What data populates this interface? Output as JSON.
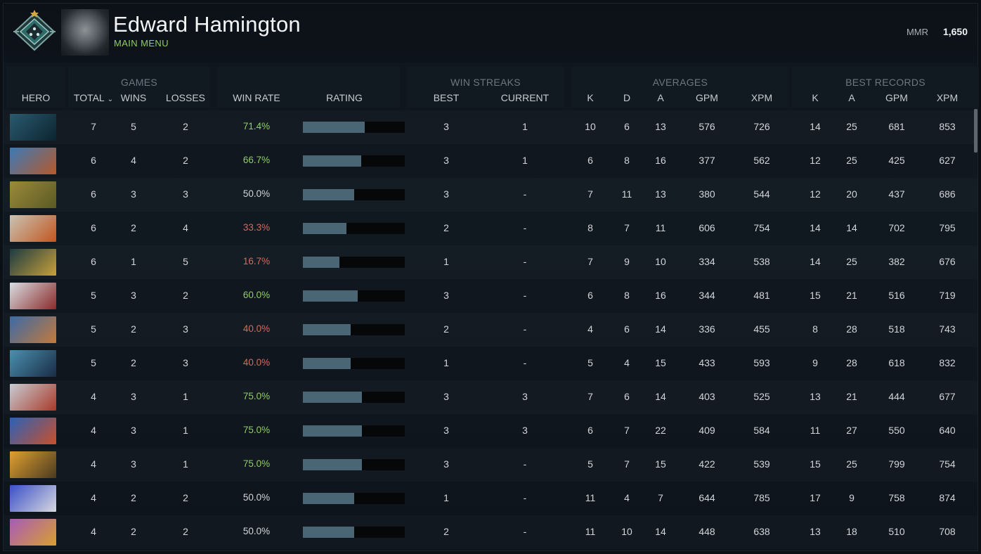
{
  "player": {
    "name": "Edward Hamington",
    "menu_link": "MAIN MENU",
    "mmr_label": "MMR",
    "mmr_value": "1,650"
  },
  "groups": {
    "games": "GAMES",
    "win_streaks": "WIN STREAKS",
    "averages": "AVERAGES",
    "best_records": "BEST RECORDS"
  },
  "columns": {
    "hero": "HERO",
    "total": "TOTAL",
    "wins": "WINS",
    "losses": "LOSSES",
    "win_rate": "WIN RATE",
    "rating": "RATING",
    "best": "BEST",
    "current": "CURRENT",
    "avg_k": "K",
    "avg_d": "D",
    "avg_a": "A",
    "avg_gpm": "GPM",
    "avg_xpm": "XPM",
    "best_k": "K",
    "best_a": "A",
    "best_gpm": "GPM",
    "best_xpm": "XPM"
  },
  "colors": {
    "win_rate_high": "#8fcf5b",
    "win_rate_low": "#d86a5a",
    "win_rate_mid": "#d2d6da",
    "rating_bar": "#4a6573"
  },
  "rows": [
    {
      "hero_icon": "hero-portrait-icon",
      "total": "7",
      "wins": "5",
      "losses": "2",
      "win_rate": "71.4%",
      "rating": 0.61,
      "best": "3",
      "current": "1",
      "k": "10",
      "d": "6",
      "a": "13",
      "gpm": "576",
      "xpm": "726",
      "bk": "14",
      "ba": "25",
      "bgpm": "681",
      "bxpm": "853",
      "c1": "#2a5a6e",
      "c2": "#0c2430"
    },
    {
      "hero_icon": "hero-portrait-icon",
      "total": "6",
      "wins": "4",
      "losses": "2",
      "win_rate": "66.7%",
      "rating": 0.57,
      "best": "3",
      "current": "1",
      "k": "6",
      "d": "8",
      "a": "16",
      "gpm": "377",
      "xpm": "562",
      "bk": "12",
      "ba": "25",
      "bgpm": "425",
      "bxpm": "627",
      "c1": "#3b7ab8",
      "c2": "#b55a2a"
    },
    {
      "hero_icon": "hero-portrait-icon",
      "total": "6",
      "wins": "3",
      "losses": "3",
      "win_rate": "50.0%",
      "rating": 0.5,
      "best": "3",
      "current": "-",
      "k": "7",
      "d": "11",
      "a": "13",
      "gpm": "380",
      "xpm": "544",
      "bk": "12",
      "ba": "20",
      "bgpm": "437",
      "bxpm": "686",
      "c1": "#9c8a3a",
      "c2": "#5a5a24"
    },
    {
      "hero_icon": "hero-portrait-icon",
      "total": "6",
      "wins": "2",
      "losses": "4",
      "win_rate": "33.3%",
      "rating": 0.43,
      "best": "2",
      "current": "-",
      "k": "8",
      "d": "7",
      "a": "11",
      "gpm": "606",
      "xpm": "754",
      "bk": "14",
      "ba": "14",
      "bgpm": "702",
      "bxpm": "795",
      "c1": "#c9c3b4",
      "c2": "#c2561f"
    },
    {
      "hero_icon": "hero-portrait-icon",
      "total": "6",
      "wins": "1",
      "losses": "5",
      "win_rate": "16.7%",
      "rating": 0.36,
      "best": "1",
      "current": "-",
      "k": "7",
      "d": "9",
      "a": "10",
      "gpm": "334",
      "xpm": "538",
      "bk": "14",
      "ba": "25",
      "bgpm": "382",
      "bxpm": "676",
      "c1": "#1c3a42",
      "c2": "#c8a03a"
    },
    {
      "hero_icon": "hero-portrait-icon",
      "total": "5",
      "wins": "3",
      "losses": "2",
      "win_rate": "60.0%",
      "rating": 0.54,
      "best": "3",
      "current": "-",
      "k": "6",
      "d": "8",
      "a": "16",
      "gpm": "344",
      "xpm": "481",
      "bk": "15",
      "ba": "21",
      "bgpm": "516",
      "bxpm": "719",
      "c1": "#d8dde2",
      "c2": "#8a2a2a"
    },
    {
      "hero_icon": "hero-portrait-icon",
      "total": "5",
      "wins": "2",
      "losses": "3",
      "win_rate": "40.0%",
      "rating": 0.47,
      "best": "2",
      "current": "-",
      "k": "4",
      "d": "6",
      "a": "14",
      "gpm": "336",
      "xpm": "455",
      "bk": "8",
      "ba": "28",
      "bgpm": "518",
      "bxpm": "743",
      "c1": "#3b6aa8",
      "c2": "#c27a3a"
    },
    {
      "hero_icon": "hero-portrait-icon",
      "total": "5",
      "wins": "2",
      "losses": "3",
      "win_rate": "40.0%",
      "rating": 0.47,
      "best": "1",
      "current": "-",
      "k": "5",
      "d": "4",
      "a": "15",
      "gpm": "433",
      "xpm": "593",
      "bk": "9",
      "ba": "28",
      "bgpm": "618",
      "bxpm": "832",
      "c1": "#4a90b0",
      "c2": "#1a2c44"
    },
    {
      "hero_icon": "hero-portrait-icon",
      "total": "4",
      "wins": "3",
      "losses": "1",
      "win_rate": "75.0%",
      "rating": 0.58,
      "best": "3",
      "current": "3",
      "k": "7",
      "d": "6",
      "a": "14",
      "gpm": "403",
      "xpm": "525",
      "bk": "13",
      "ba": "21",
      "bgpm": "444",
      "bxpm": "677",
      "c1": "#c8ccd2",
      "c2": "#a83a2a"
    },
    {
      "hero_icon": "hero-portrait-icon",
      "total": "4",
      "wins": "3",
      "losses": "1",
      "win_rate": "75.0%",
      "rating": 0.58,
      "best": "3",
      "current": "3",
      "k": "6",
      "d": "7",
      "a": "22",
      "gpm": "409",
      "xpm": "584",
      "bk": "11",
      "ba": "27",
      "bgpm": "550",
      "bxpm": "640",
      "c1": "#2a62b8",
      "c2": "#c8502a"
    },
    {
      "hero_icon": "hero-portrait-icon",
      "total": "4",
      "wins": "3",
      "losses": "1",
      "win_rate": "75.0%",
      "rating": 0.58,
      "best": "3",
      "current": "-",
      "k": "5",
      "d": "7",
      "a": "15",
      "gpm": "422",
      "xpm": "539",
      "bk": "15",
      "ba": "25",
      "bgpm": "799",
      "bxpm": "754",
      "c1": "#e0a030",
      "c2": "#4a3a20"
    },
    {
      "hero_icon": "hero-portrait-icon",
      "total": "4",
      "wins": "2",
      "losses": "2",
      "win_rate": "50.0%",
      "rating": 0.5,
      "best": "1",
      "current": "-",
      "k": "11",
      "d": "4",
      "a": "7",
      "gpm": "644",
      "xpm": "785",
      "bk": "17",
      "ba": "9",
      "bgpm": "758",
      "bxpm": "874",
      "c1": "#3a50c8",
      "c2": "#d8d8e0"
    },
    {
      "hero_icon": "hero-portrait-icon",
      "total": "4",
      "wins": "2",
      "losses": "2",
      "win_rate": "50.0%",
      "rating": 0.5,
      "best": "2",
      "current": "-",
      "k": "11",
      "d": "10",
      "a": "14",
      "gpm": "448",
      "xpm": "638",
      "bk": "13",
      "ba": "18",
      "bgpm": "510",
      "bxpm": "708",
      "c1": "#a85ab8",
      "c2": "#d8a030"
    }
  ]
}
